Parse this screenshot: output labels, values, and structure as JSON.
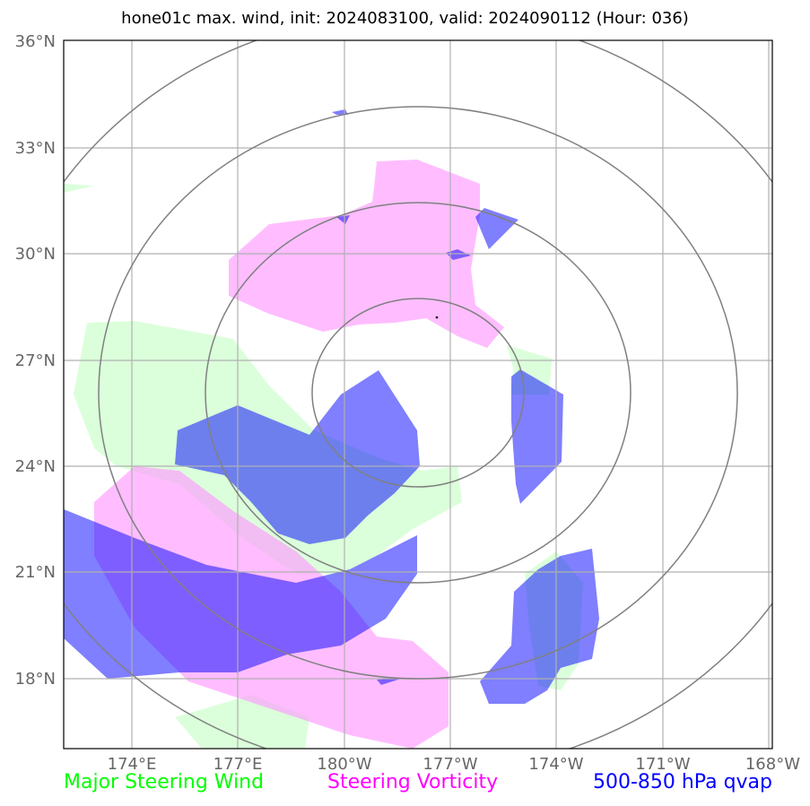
{
  "title": "hone01c max. wind, init: 2024083100, valid: 2024090112 (Hour: 036)",
  "lat_labels": [
    "36°N",
    "33°N",
    "30°N",
    "27°N",
    "24°N",
    "21°N",
    "18°N"
  ],
  "lon_labels": [
    "174°E",
    "177°E",
    "180°W",
    "177°W",
    "174°W",
    "171°W",
    "168°W"
  ],
  "legend": {
    "wind": {
      "label": "Major Steering Wind",
      "color": "#00ff00"
    },
    "vorticity": {
      "label": "Steering Vorticity",
      "color": "#ff00ff"
    },
    "qvap": {
      "label": "500-850 hPa qvap",
      "color": "#0000ff"
    }
  },
  "colors": {
    "wind_fill": "#ccffcc",
    "vorticity_fill": "#ff99ff",
    "qvap_fill": "#0000ff",
    "range_rings": "#808080",
    "grid": "#b0b0b0"
  }
}
